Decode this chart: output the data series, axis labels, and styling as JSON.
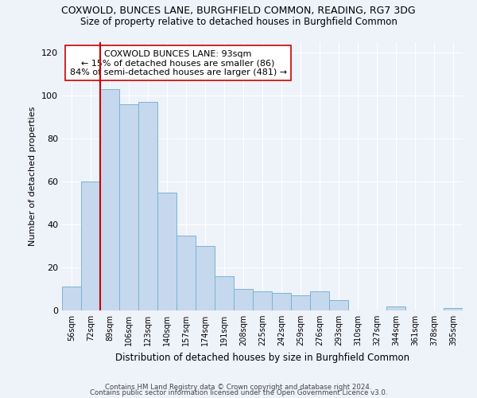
{
  "title": "COXWOLD, BUNCES LANE, BURGHFIELD COMMON, READING, RG7 3DG",
  "subtitle": "Size of property relative to detached houses in Burghfield Common",
  "xlabel": "Distribution of detached houses by size in Burghfield Common",
  "ylabel": "Number of detached properties",
  "footer1": "Contains HM Land Registry data © Crown copyright and database right 2024.",
  "footer2": "Contains public sector information licensed under the Open Government Licence v3.0.",
  "categories": [
    "56sqm",
    "72sqm",
    "89sqm",
    "106sqm",
    "123sqm",
    "140sqm",
    "157sqm",
    "174sqm",
    "191sqm",
    "208sqm",
    "225sqm",
    "242sqm",
    "259sqm",
    "276sqm",
    "293sqm",
    "310sqm",
    "327sqm",
    "344sqm",
    "361sqm",
    "378sqm",
    "395sqm"
  ],
  "values": [
    11,
    60,
    103,
    96,
    97,
    55,
    35,
    30,
    16,
    10,
    9,
    8,
    7,
    9,
    5,
    0,
    0,
    2,
    0,
    0,
    1
  ],
  "bar_color": "#c5d8ed",
  "bar_edge_color": "#7ab4d4",
  "vline_x": 1.5,
  "vline_color": "#cc0000",
  "annotation_text": "COXWOLD BUNCES LANE: 93sqm\n← 15% of detached houses are smaller (86)\n84% of semi-detached houses are larger (481) →",
  "annotation_box_color": "#ffffff",
  "annotation_box_edge": "#cc0000",
  "ylim": [
    0,
    125
  ],
  "yticks": [
    0,
    20,
    40,
    60,
    80,
    100,
    120
  ],
  "background_color": "#eef2f9",
  "plot_background": "#eef2f9",
  "grid_color": "#ffffff",
  "title_fontsize": 9,
  "subtitle_fontsize": 8.5
}
